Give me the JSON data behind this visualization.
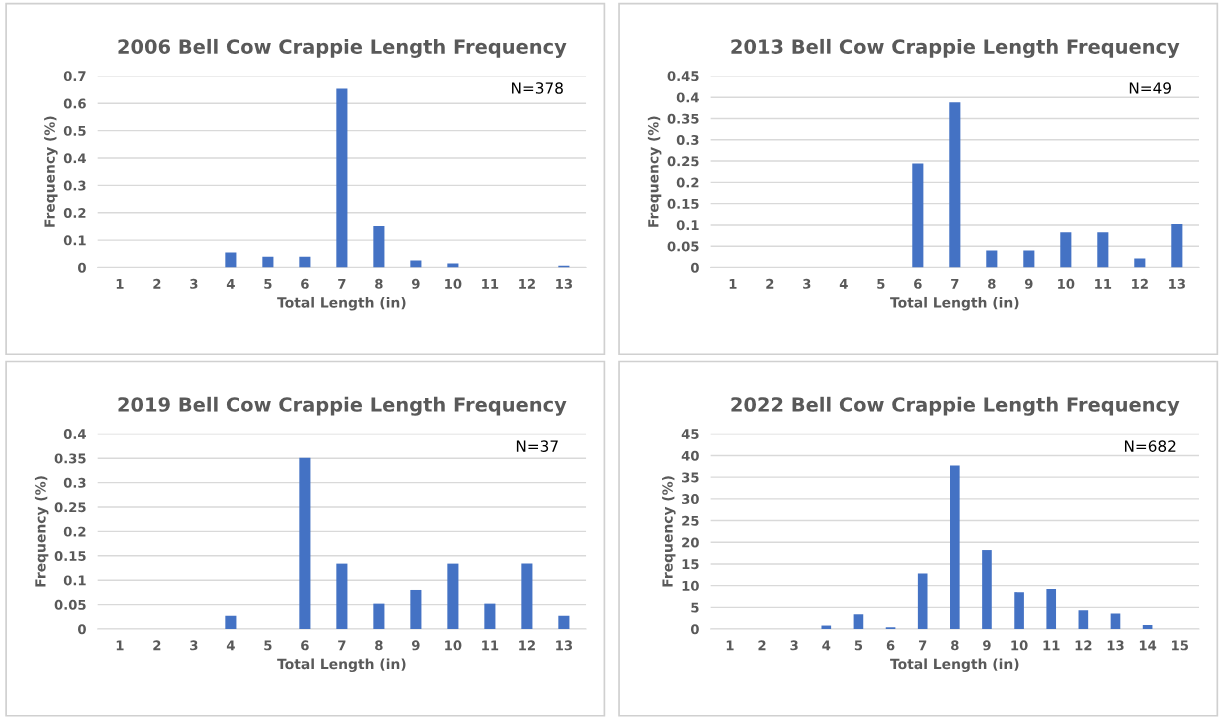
{
  "chart_data": [
    {
      "type": "bar",
      "title": "2006 Bell Cow Crappie Length Frequency",
      "xlabel": "Total Length (in)",
      "ylabel": "Frequency (%)",
      "categories": [
        "1",
        "2",
        "3",
        "4",
        "5",
        "6",
        "7",
        "8",
        "9",
        "10",
        "11",
        "12",
        "13"
      ],
      "values": [
        0,
        0,
        0,
        0.055,
        0.039,
        0.039,
        0.654,
        0.152,
        0.026,
        0.015,
        0,
        0,
        0.006
      ],
      "color": "#4472c4",
      "ylim": [
        0,
        0.7
      ],
      "yticks": [
        0,
        0.1,
        0.2,
        0.3,
        0.4,
        0.5,
        0.6,
        0.7
      ],
      "grid": "y",
      "annotations": [
        "N=378"
      ]
    },
    {
      "type": "bar",
      "title": "2013 Bell Cow Crappie Length Frequency",
      "xlabel": "Total Length (in)",
      "ylabel": "Frequency (%)",
      "categories": [
        "1",
        "2",
        "3",
        "4",
        "5",
        "6",
        "7",
        "8",
        "9",
        "10",
        "11",
        "12",
        "13"
      ],
      "values": [
        0,
        0,
        0,
        0,
        0,
        0.244,
        0.388,
        0.04,
        0.04,
        0.083,
        0.083,
        0.021,
        0.102
      ],
      "color": "#4472c4",
      "ylim": [
        0,
        0.45
      ],
      "yticks": [
        0,
        0.05,
        0.1,
        0.15,
        0.2,
        0.25,
        0.3,
        0.35,
        0.4,
        0.45
      ],
      "grid": "y",
      "annotations": [
        "N=49"
      ]
    },
    {
      "type": "bar",
      "title": "2019 Bell Cow Crappie Length Frequency",
      "xlabel": "Total Length (in)",
      "ylabel": "Frequency (%)",
      "categories": [
        "1",
        "2",
        "3",
        "4",
        "5",
        "6",
        "7",
        "8",
        "9",
        "10",
        "11",
        "12",
        "13"
      ],
      "values": [
        0,
        0,
        0,
        0.027,
        0,
        0.351,
        0.134,
        0.052,
        0.08,
        0.134,
        0.052,
        0.134,
        0.027
      ],
      "color": "#4472c4",
      "ylim": [
        0,
        0.4
      ],
      "yticks": [
        0,
        0.05,
        0.1,
        0.15,
        0.2,
        0.25,
        0.3,
        0.35,
        0.4
      ],
      "grid": "y",
      "annotations": [
        "N=37"
      ]
    },
    {
      "type": "bar",
      "title": "2022 Bell Cow Crappie Length Frequency",
      "xlabel": "Total Length (in)",
      "ylabel": "Frequency (%)",
      "categories": [
        "1",
        "2",
        "3",
        "4",
        "5",
        "6",
        "7",
        "8",
        "9",
        "10",
        "11",
        "12",
        "13",
        "14",
        "15"
      ],
      "values": [
        0,
        0,
        0,
        0.8,
        3.4,
        0.4,
        12.8,
        37.7,
        18.2,
        8.5,
        9.2,
        4.3,
        3.6,
        0.9,
        0
      ],
      "color": "#4472c4",
      "ylim": [
        0,
        45
      ],
      "yticks": [
        0,
        5,
        10,
        15,
        20,
        25,
        30,
        35,
        40,
        45
      ],
      "grid": "y",
      "annotations": [
        "N=682"
      ]
    }
  ]
}
